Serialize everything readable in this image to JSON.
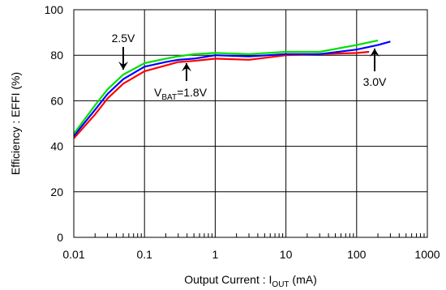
{
  "chart_data": {
    "type": "line",
    "xlabel": {
      "prefix": "Output Current : I",
      "sub": "OUT",
      "suffix": " (mA)"
    },
    "ylabel": "Efficiency : EFFI (%)",
    "xscale": "log",
    "xlim": [
      0.01,
      1000
    ],
    "ylim": [
      0,
      100
    ],
    "grid": true,
    "x_ticks": [
      0.01,
      0.1,
      1,
      10,
      100,
      1000
    ],
    "x_tick_labels": [
      "0.01",
      "0.1",
      "1",
      "10",
      "100",
      "1000"
    ],
    "y_ticks": [
      0,
      20,
      40,
      60,
      80,
      100
    ],
    "y_tick_labels": [
      "0",
      "20",
      "40",
      "60",
      "80",
      "100"
    ],
    "series": [
      {
        "color": "#ff0000",
        "x": [
          0.01,
          0.02,
          0.03,
          0.05,
          0.1,
          0.2,
          0.3,
          0.5,
          1,
          3,
          10,
          30,
          100,
          150
        ],
        "y": [
          43.5,
          54,
          61,
          67.5,
          73,
          75.5,
          77,
          77.5,
          78.5,
          78,
          80,
          80.5,
          81,
          81.5
        ]
      },
      {
        "color": "#0000ff",
        "x": [
          0.01,
          0.02,
          0.03,
          0.05,
          0.1,
          0.2,
          0.3,
          0.5,
          1,
          3,
          10,
          30,
          100,
          200,
          300
        ],
        "y": [
          44.5,
          56,
          63,
          69.5,
          75,
          77,
          78,
          78.5,
          80,
          79.5,
          80.5,
          80.5,
          82.5,
          84.5,
          86
        ]
      },
      {
        "color": "#00e000",
        "x": [
          0.01,
          0.02,
          0.03,
          0.05,
          0.1,
          0.2,
          0.3,
          0.5,
          1,
          3,
          10,
          30,
          100,
          200
        ],
        "y": [
          45.5,
          58,
          65,
          71.5,
          76.5,
          78.5,
          79.5,
          80.5,
          81,
          80.5,
          81.5,
          81.5,
          84.5,
          86.5
        ]
      }
    ],
    "annotations": [
      {
        "id": "ann-25v",
        "text": "2.5V",
        "point": [
          0.05,
          71.5
        ]
      },
      {
        "id": "ann-18v",
        "prefix": "V",
        "sub": "BAT",
        "suffix": "=1.8V",
        "point": [
          0.4,
          77.5
        ]
      },
      {
        "id": "ann-30v",
        "text": "3.0V",
        "point": [
          180,
          84.5
        ]
      }
    ]
  }
}
